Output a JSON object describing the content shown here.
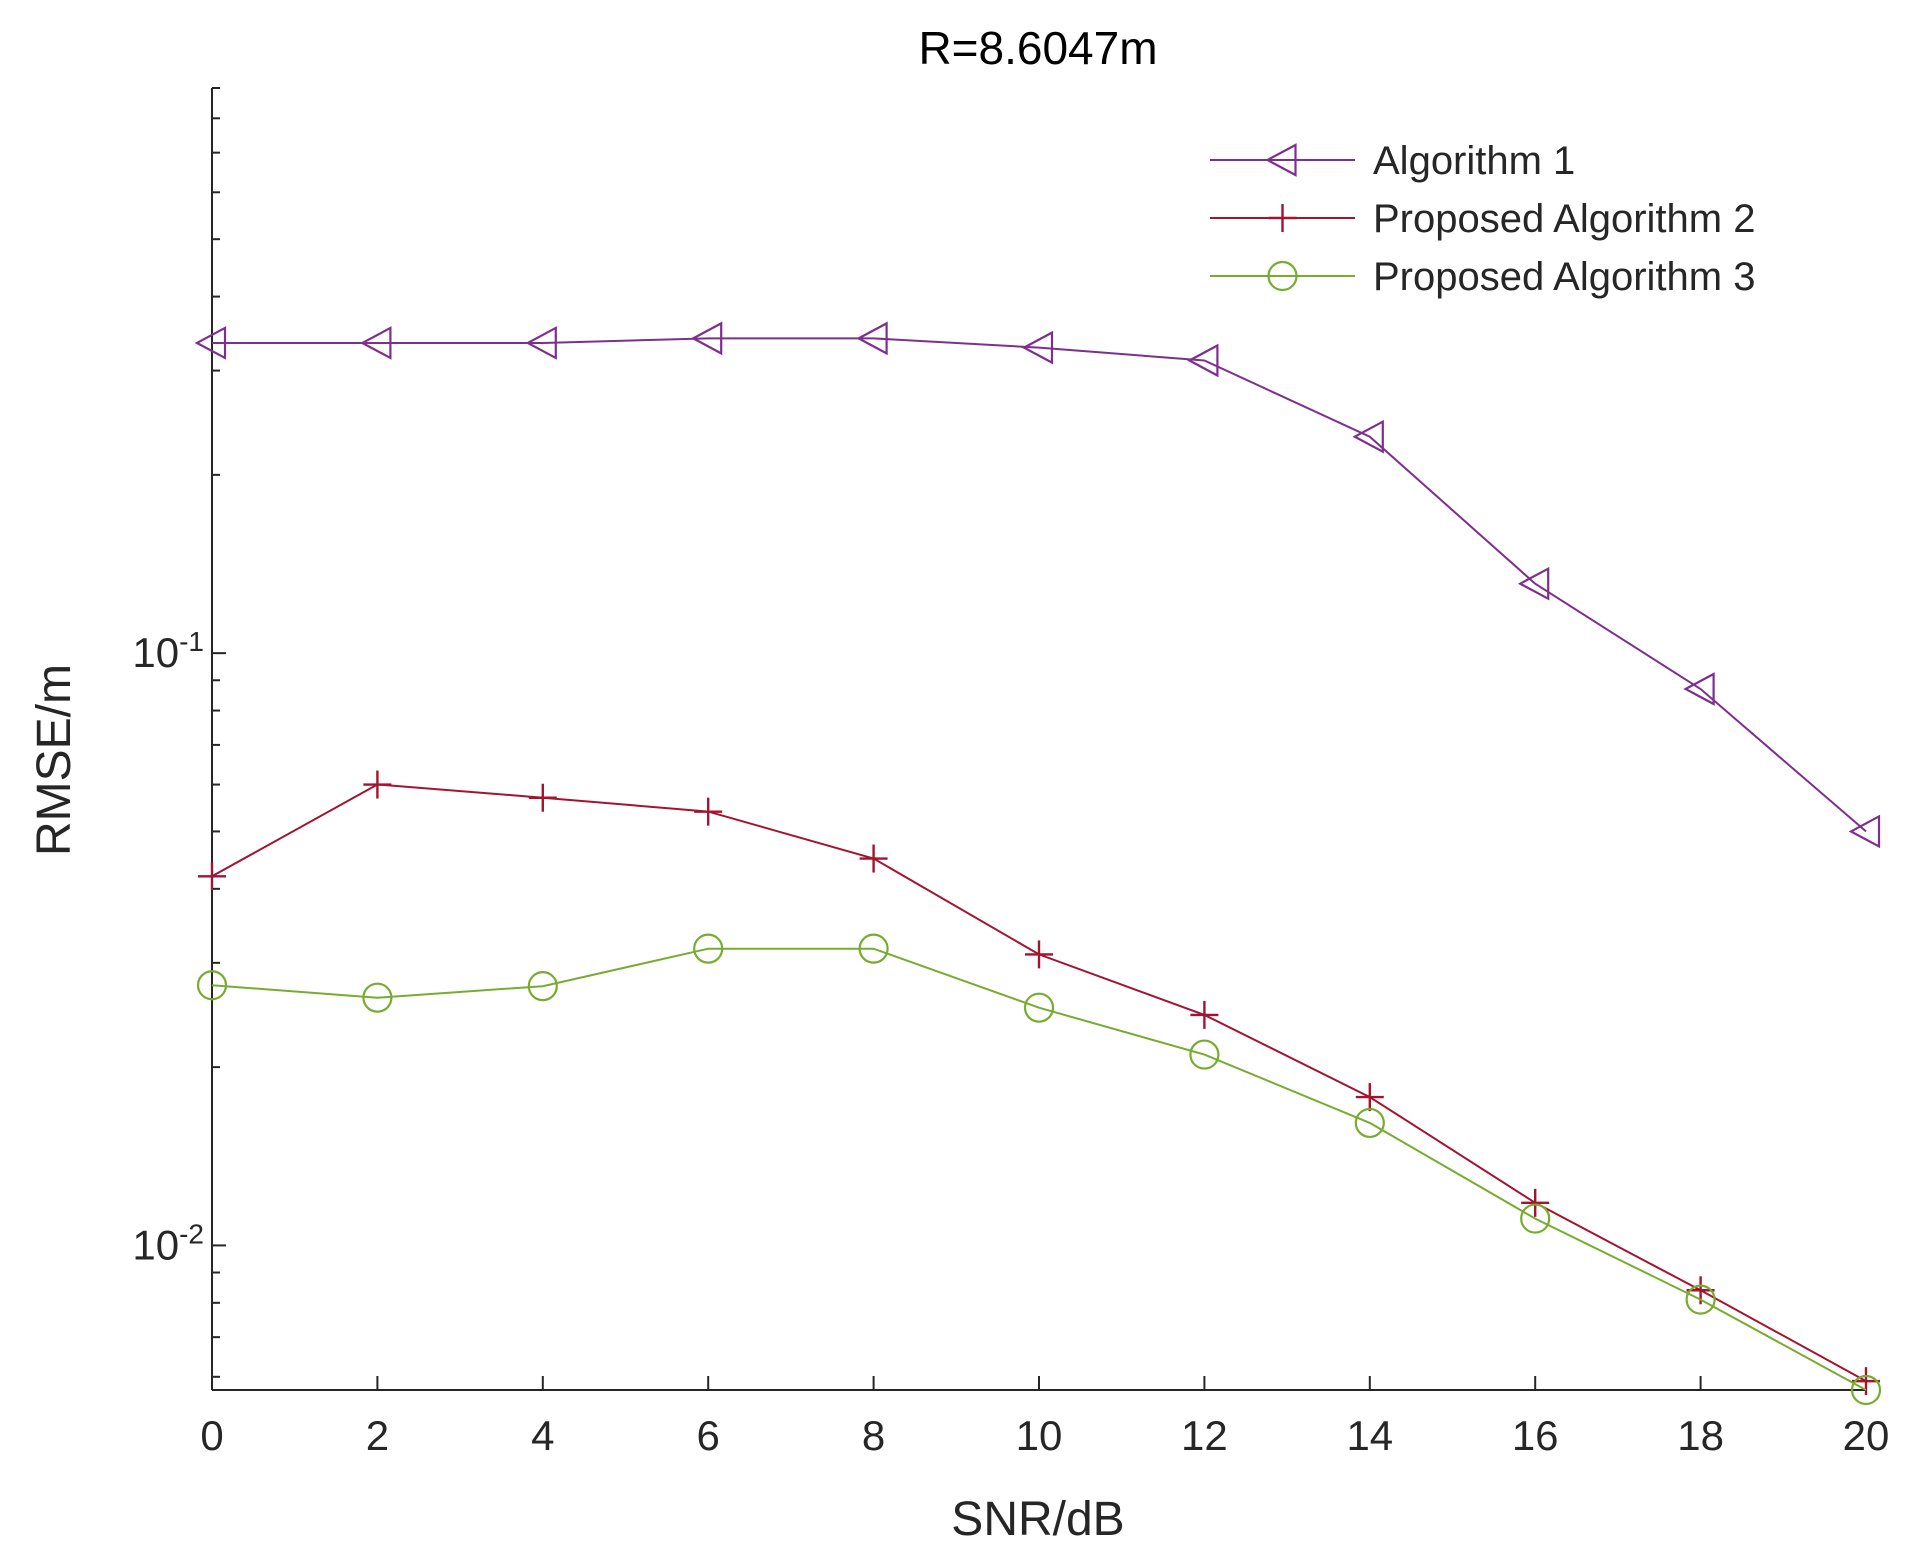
{
  "chart_data": {
    "type": "line",
    "title": "R=8.6047m",
    "xlabel": "SNR/dB",
    "ylabel": "RMSE/m",
    "yscale": "log",
    "xlim": [
      0,
      20
    ],
    "ylim": [
      0.0057,
      0.9
    ],
    "grid": false,
    "legend_position": "top-right",
    "x": [
      0,
      2,
      4,
      6,
      8,
      10,
      12,
      14,
      16,
      18,
      20
    ],
    "x_ticks": [
      "0",
      "2",
      "4",
      "6",
      "8",
      "10",
      "12",
      "14",
      "16",
      "18",
      "20"
    ],
    "y_major_ticks": [
      {
        "value": 0.1,
        "base": "10",
        "exp": "-1"
      },
      {
        "value": 0.01,
        "base": "10",
        "exp": "-2"
      }
    ],
    "series": [
      {
        "name": "Algorithm 1",
        "color": "#7e2f8e",
        "marker": "triangle-left",
        "values": [
          0.334,
          0.334,
          0.334,
          0.34,
          0.34,
          0.328,
          0.312,
          0.232,
          0.131,
          0.087,
          0.05
        ]
      },
      {
        "name": "Proposed Algorithm 2",
        "color": "#a2142f",
        "marker": "plus",
        "values": [
          0.042,
          0.06,
          0.057,
          0.054,
          0.045,
          0.031,
          0.0245,
          0.0178,
          0.0118,
          0.0084,
          0.0059
        ]
      },
      {
        "name": "Proposed Algorithm 3",
        "color": "#77ac30",
        "marker": "circle",
        "values": [
          0.0275,
          0.0262,
          0.0274,
          0.0317,
          0.0317,
          0.0252,
          0.021,
          0.0161,
          0.0111,
          0.0081,
          0.0057
        ]
      }
    ]
  }
}
